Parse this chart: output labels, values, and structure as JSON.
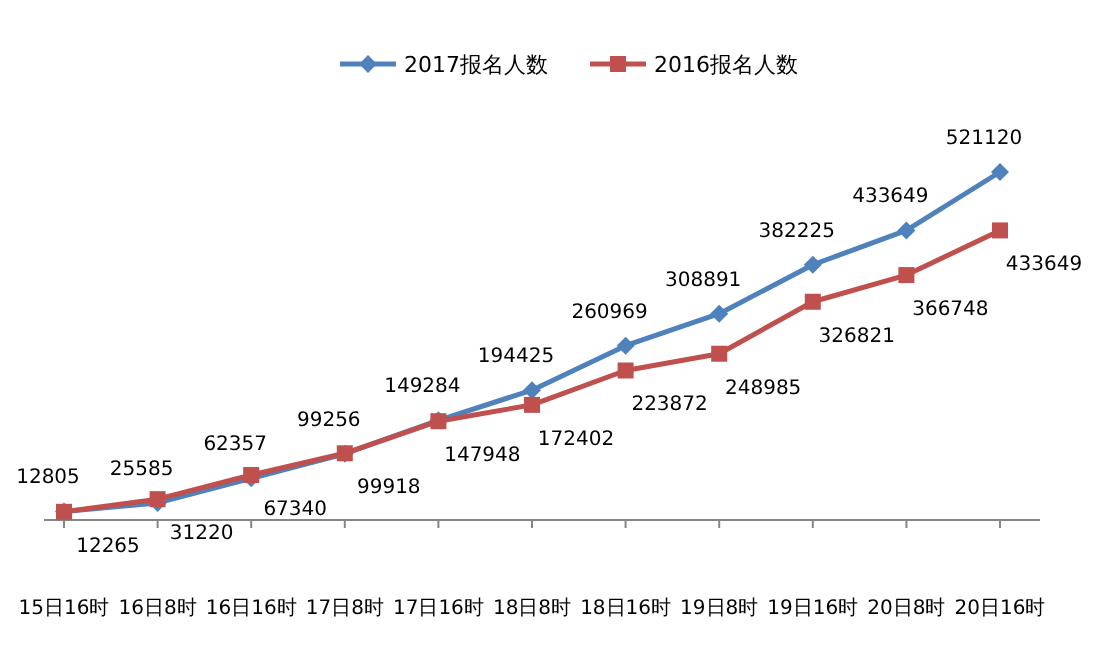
{
  "chart_data": {
    "type": "line",
    "categories": [
      "15日16时",
      "16日8时",
      "16日16时",
      "17日8时",
      "17日16时",
      "18日8时",
      "18日16时",
      "19日8时",
      "19日16时",
      "20日8时",
      "20日16时"
    ],
    "series": [
      {
        "name": "2017报名人数",
        "color": "#4f81bd",
        "marker": "diamond",
        "values": [
          12805,
          25585,
          62357,
          99256,
          149284,
          194425,
          260969,
          308891,
          382225,
          433649,
          521120
        ]
      },
      {
        "name": "2016报名人数",
        "color": "#c0504d",
        "marker": "square",
        "values": [
          12265,
          31220,
          67340,
          99918,
          147948,
          172402,
          223872,
          248985,
          326821,
          366748,
          433649
        ]
      }
    ],
    "data_labels": true,
    "legend": "top",
    "tick_labels": "x"
  }
}
